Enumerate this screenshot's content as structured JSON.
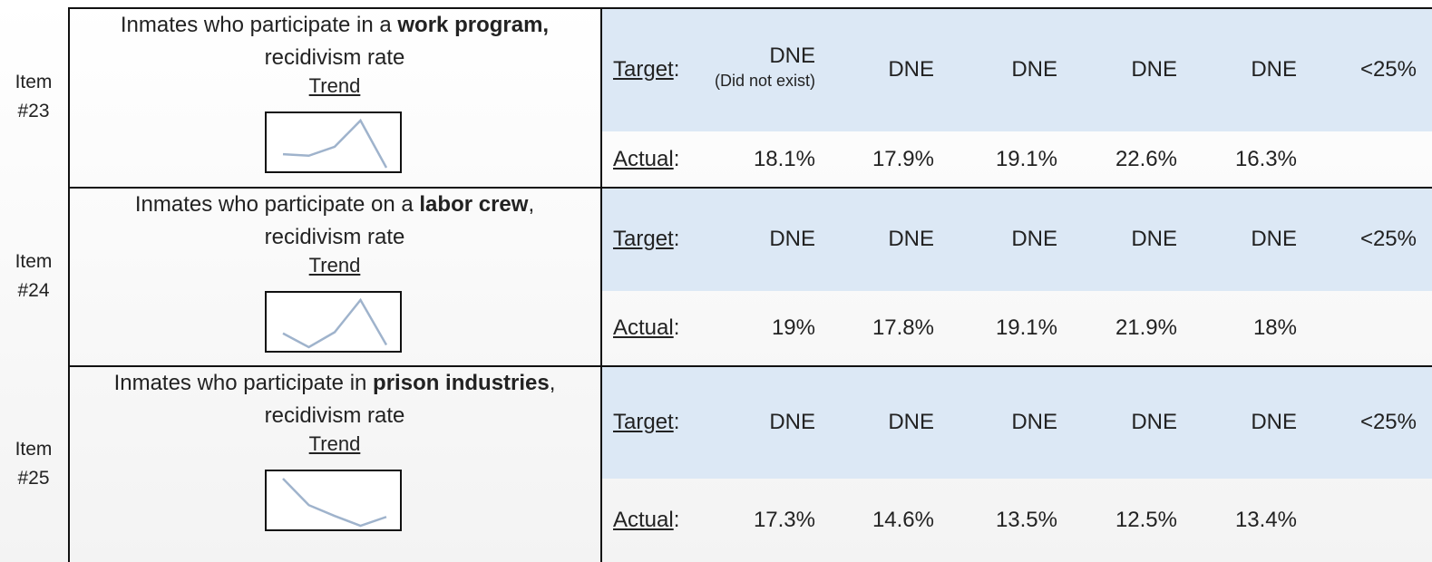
{
  "items": [
    {
      "item": "Item #23",
      "description": {
        "prefix": "Inmates who participate in a ",
        "bold": "work program,",
        "line2": "recidivism rate"
      },
      "trend_label": "Trend",
      "target_label": "Target",
      "actual_label": "Actual",
      "label_separator": ":",
      "targets": [
        "DNE",
        "DNE",
        "DNE",
        "DNE",
        "DNE",
        "<25%"
      ],
      "target_note": "(Did not exist)",
      "actual": [
        18.1,
        17.9,
        19.1,
        22.6,
        16.3
      ],
      "actual_labels": [
        "18.1%",
        "17.9%",
        "19.1%",
        "22.6%",
        "16.3%"
      ]
    },
    {
      "item": "Item #24",
      "description": {
        "prefix": "Inmates who participate on a ",
        "bold": "labor crew",
        "suffix": ",",
        "line2": "recidivism rate"
      },
      "trend_label": "Trend",
      "target_label": "Target",
      "actual_label": "Actual",
      "label_separator": ":",
      "targets": [
        "DNE",
        "DNE",
        "DNE",
        "DNE",
        "DNE",
        "<25%"
      ],
      "actual": [
        19,
        17.8,
        19.1,
        21.9,
        18
      ],
      "actual_labels": [
        "19%",
        "17.8%",
        "19.1%",
        "21.9%",
        "18%"
      ]
    },
    {
      "item": "Item #25",
      "description": {
        "prefix": "Inmates who participate in ",
        "bold": "prison industries",
        "suffix": ",",
        "line2": "recidivism rate"
      },
      "trend_label": "Trend",
      "target_label": "Target",
      "actual_label": "Actual",
      "label_separator": ":",
      "targets": [
        "DNE",
        "DNE",
        "DNE",
        "DNE",
        "DNE",
        "<25%"
      ],
      "actual": [
        17.3,
        14.6,
        13.5,
        12.5,
        13.4
      ],
      "actual_labels": [
        "17.3%",
        "14.6%",
        "13.5%",
        "12.5%",
        "13.4%"
      ]
    }
  ]
}
